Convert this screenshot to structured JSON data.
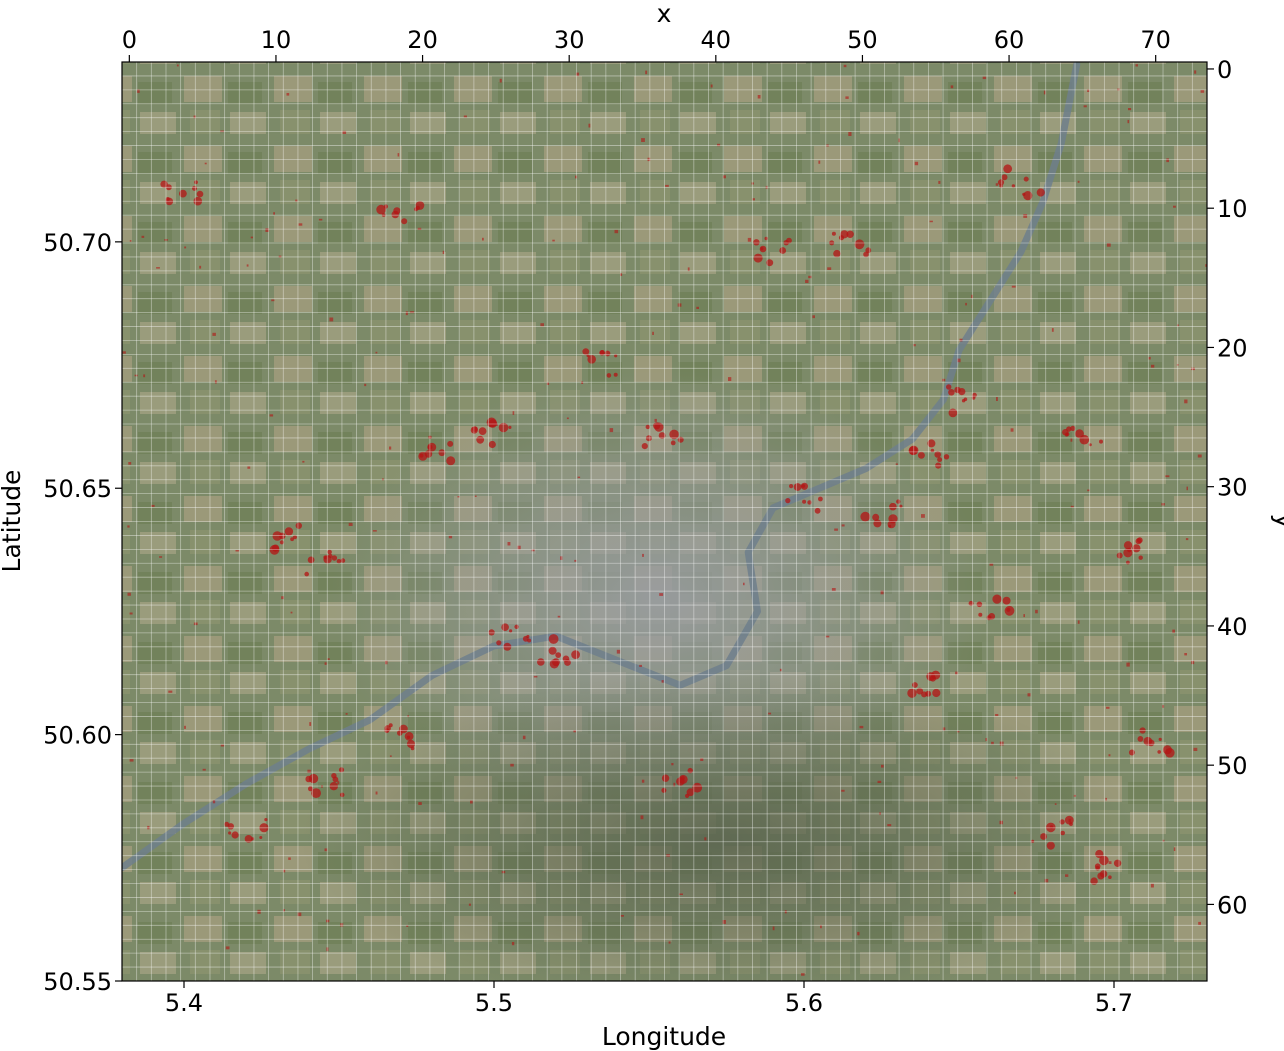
{
  "chart_data": {
    "type": "heatmap",
    "base_layer": "satellite-imagery",
    "overlay_color": "#b41414",
    "grid": true,
    "bottom_axis": {
      "label": "Longitude",
      "range": [
        5.38,
        5.73
      ],
      "ticks": [
        5.4,
        5.5,
        5.6,
        5.7
      ],
      "tick_labels": [
        "5.4",
        "5.5",
        "5.6",
        "5.7"
      ]
    },
    "left_axis": {
      "label": "Latitude",
      "range": [
        50.55,
        50.7365
      ],
      "ticks": [
        50.55,
        50.6,
        50.65,
        50.7
      ],
      "tick_labels": [
        "50.55",
        "50.60",
        "50.65",
        "50.70"
      ]
    },
    "top_axis": {
      "label": "x",
      "range": [
        -0.5,
        73.5
      ],
      "ticks": [
        0,
        10,
        20,
        30,
        40,
        50,
        60,
        70
      ],
      "tick_labels": [
        "0",
        "10",
        "20",
        "30",
        "40",
        "50",
        "60",
        "70"
      ]
    },
    "right_axis": {
      "label": "y",
      "range": [
        -0.5,
        65.5
      ],
      "inverted": true,
      "ticks": [
        0,
        10,
        20,
        30,
        40,
        50,
        60
      ],
      "tick_labels": [
        "0",
        "10",
        "20",
        "30",
        "40",
        "50",
        "60"
      ]
    },
    "river_path_lonlat": [
      [
        5.38,
        50.573
      ],
      [
        5.4,
        50.582
      ],
      [
        5.42,
        50.59
      ],
      [
        5.44,
        50.597
      ],
      [
        5.46,
        50.603
      ],
      [
        5.48,
        50.612
      ],
      [
        5.5,
        50.618
      ],
      [
        5.52,
        50.62
      ],
      [
        5.54,
        50.615
      ],
      [
        5.56,
        50.61
      ],
      [
        5.575,
        50.614
      ],
      [
        5.585,
        50.625
      ],
      [
        5.582,
        50.637
      ],
      [
        5.59,
        50.646
      ],
      [
        5.605,
        50.65
      ],
      [
        5.62,
        50.654
      ],
      [
        5.635,
        50.66
      ],
      [
        5.645,
        50.668
      ],
      [
        5.65,
        50.678
      ],
      [
        5.66,
        50.688
      ],
      [
        5.67,
        50.698
      ],
      [
        5.677,
        50.708
      ],
      [
        5.683,
        50.72
      ],
      [
        5.688,
        50.736
      ]
    ],
    "hotspots_lonlat": [
      [
        5.435,
        50.64
      ],
      [
        5.445,
        50.635
      ],
      [
        5.48,
        50.658
      ],
      [
        5.5,
        50.661
      ],
      [
        5.535,
        50.675
      ],
      [
        5.555,
        50.66
      ],
      [
        5.52,
        50.617
      ],
      [
        5.505,
        50.62
      ],
      [
        5.59,
        50.698
      ],
      [
        5.615,
        50.7
      ],
      [
        5.64,
        50.657
      ],
      [
        5.65,
        50.668
      ],
      [
        5.67,
        50.712
      ],
      [
        5.69,
        50.66
      ],
      [
        5.705,
        50.637
      ],
      [
        5.712,
        50.598
      ],
      [
        5.7,
        50.573
      ],
      [
        5.42,
        50.58
      ],
      [
        5.445,
        50.59
      ],
      [
        5.47,
        50.6
      ],
      [
        5.6,
        50.648
      ],
      [
        5.625,
        50.645
      ],
      [
        5.4,
        50.71
      ],
      [
        5.47,
        50.705
      ],
      [
        5.56,
        50.59
      ],
      [
        5.64,
        50.61
      ],
      [
        5.68,
        50.58
      ],
      [
        5.66,
        50.625
      ]
    ]
  }
}
